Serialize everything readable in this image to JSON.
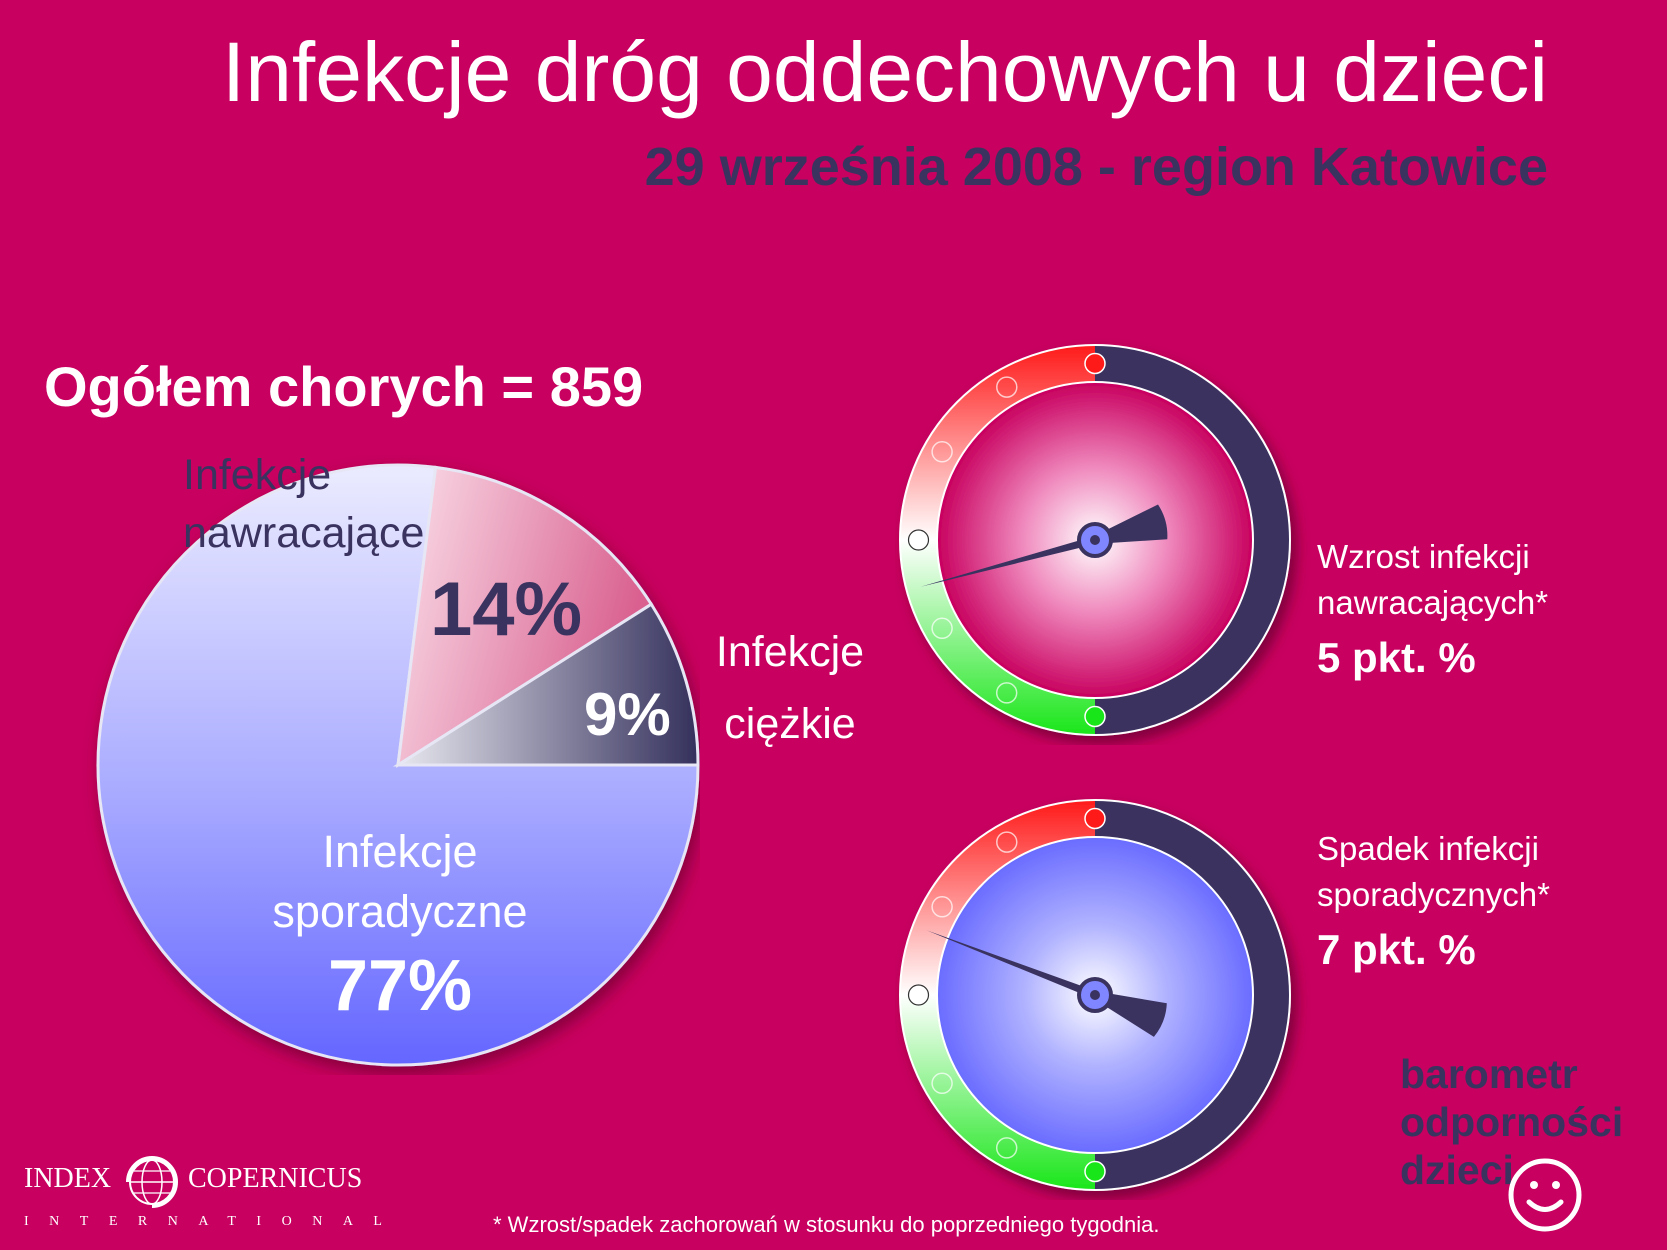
{
  "title": "Infekcje dróg oddechowych u dzieci",
  "subtitle": "29 września 2008 - region Katowice",
  "total_label": "Ogółem chorych = 859",
  "chart_data": [
    {
      "type": "pie",
      "title": "Ogółem chorych = 859",
      "slices": [
        {
          "label_line1": "Infekcje",
          "label_line2": "nawracające",
          "label": "Infekcje nawracające",
          "value": 14,
          "display": "14%"
        },
        {
          "label_line1": "Infekcje",
          "label_line2": "ciężkie",
          "label": "Infekcje ciężkie",
          "value": 9,
          "display": "9%"
        },
        {
          "label_line1": "Infekcje",
          "label_line2": "sporadyczne",
          "label": "Infekcje sporadyczne",
          "value": 77,
          "display": "77%"
        }
      ]
    },
    {
      "type": "gauge",
      "label_line1": "Wzrost infekcji",
      "label_line2": "nawracających*",
      "value_text": "5 pkt. %",
      "value": 5,
      "direction": "increase"
    },
    {
      "type": "gauge",
      "label_line1": "Spadek infekcji",
      "label_line2": "sporadycznych*",
      "value_text": "7 pkt. %",
      "value": -7,
      "direction": "decrease"
    }
  ],
  "brand": {
    "line1": "barometr",
    "line2": "odporności",
    "line3": "dzieci"
  },
  "footnote": "* Wzrost/spadek zachorowań w stosunku do poprzedniego tygodnia.",
  "logo": {
    "word1": "INDEX",
    "word2": "COPERNICUS",
    "word3": "INTERNATIONAL"
  },
  "colors": {
    "background": "#c8005f",
    "dark": "#3a3360",
    "pie_nawracajace": "#f2a9c6",
    "pie_ciezkie": "#4a4670",
    "pie_sporadyczne": "#8f95ff",
    "gauge_red": "#ff1a1a",
    "gauge_green": "#19e619"
  }
}
